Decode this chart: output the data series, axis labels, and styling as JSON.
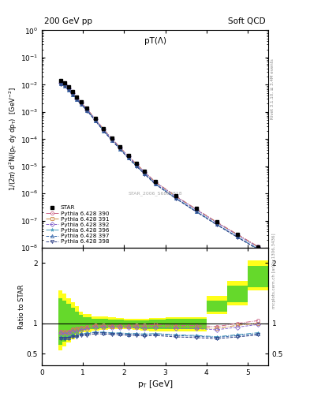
{
  "title_top_left": "200 GeV pp",
  "title_top_right": "Soft QCD",
  "plot_title": "pT(Λ)",
  "ylabel_main": "1/(2π) d²N/(p₁ dy dp₁)  [GeV⁻²]",
  "ylabel_ratio": "Ratio to STAR",
  "xlabel": "p₁ [GeV]",
  "right_label_top": "Rivet 3.1.10, ≥ 3.4M events",
  "right_label_bottom": "mcplots.cern.ch [arXiv:1306.3436]",
  "watermark": "STAR_2006_S6860818",
  "star_label": "STAR",
  "star_pt": [
    0.45,
    0.55,
    0.65,
    0.75,
    0.85,
    0.95,
    1.1,
    1.3,
    1.5,
    1.7,
    1.9,
    2.1,
    2.3,
    2.5,
    2.75,
    3.25,
    3.75,
    4.25,
    4.75,
    5.25
  ],
  "star_val": [
    0.014,
    0.012,
    0.0085,
    0.0055,
    0.0036,
    0.0024,
    0.00135,
    0.00057,
    0.00024,
    0.00011,
    5.2e-05,
    2.5e-05,
    1.25e-05,
    6.5e-06,
    2.8e-06,
    8.5e-07,
    2.8e-07,
    9.5e-08,
    3.2e-08,
    1.1e-08
  ],
  "star_yerr": [
    0.0008,
    0.0007,
    0.0005,
    0.0003,
    0.0002,
    0.00013,
    7e-05,
    3e-05,
    1.3e-05,
    6e-06,
    3e-06,
    1.4e-06,
    7e-07,
    3.5e-07,
    1.5e-07,
    4.5e-08,
    1.5e-08,
    5e-09,
    2e-09,
    8e-10
  ],
  "pythia_pt": [
    0.45,
    0.55,
    0.65,
    0.75,
    0.85,
    0.95,
    1.1,
    1.3,
    1.5,
    1.7,
    1.9,
    2.1,
    2.3,
    2.5,
    2.75,
    3.25,
    3.75,
    4.25,
    4.75,
    5.25
  ],
  "series": [
    {
      "label": "Pythia 6.428 390",
      "color": "#cc6688",
      "marker": "o",
      "linestyle": "-.",
      "val": [
        0.0122,
        0.0104,
        0.0074,
        0.005,
        0.0033,
        0.00225,
        0.00127,
        0.000555,
        0.000232,
        0.000106,
        5e-05,
        2.4e-05,
        1.22e-05,
        6.3e-06,
        2.75e-06,
        8.2e-07,
        2.7e-07,
        9e-08,
        3.2e-08,
        1.15e-08
      ]
    },
    {
      "label": "Pythia 6.428 391",
      "color": "#cc8844",
      "marker": "s",
      "linestyle": "-.",
      "val": [
        0.012,
        0.0102,
        0.0073,
        0.0049,
        0.0032,
        0.0022,
        0.00125,
        0.000545,
        0.000228,
        0.000104,
        4.9e-05,
        2.35e-05,
        1.19e-05,
        6.1e-06,
        2.68e-06,
        8e-07,
        2.62e-07,
        8.7e-08,
        3.1e-08,
        1.1e-08
      ]
    },
    {
      "label": "Pythia 6.428 392",
      "color": "#8866cc",
      "marker": "D",
      "linestyle": "--",
      "val": [
        0.0118,
        0.01,
        0.0071,
        0.0048,
        0.0031,
        0.00215,
        0.00122,
        0.000535,
        0.000225,
        0.000103,
        4.85e-05,
        2.32e-05,
        1.17e-05,
        6e-06,
        2.62e-06,
        7.8e-07,
        2.56e-07,
        8.5e-08,
        3e-08,
        1.08e-08
      ]
    },
    {
      "label": "Pythia 6.428 396",
      "color": "#4499bb",
      "marker": "*",
      "linestyle": "-.",
      "val": [
        0.0108,
        0.0092,
        0.0066,
        0.0044,
        0.0029,
        0.002,
        0.00113,
        0.00049,
        0.000205,
        9.3e-05,
        4.38e-05,
        2.08e-05,
        1.04e-05,
        5.35e-06,
        2.33e-06,
        6.9e-07,
        2.24e-07,
        7.4e-08,
        2.6e-08,
        9.3e-09
      ]
    },
    {
      "label": "Pythia 6.428 397",
      "color": "#3366aa",
      "marker": "^",
      "linestyle": "--",
      "val": [
        0.0107,
        0.0091,
        0.0065,
        0.0044,
        0.0029,
        0.00198,
        0.00112,
        0.000485,
        0.000203,
        9.2e-05,
        4.32e-05,
        2.05e-05,
        1.03e-05,
        5.28e-06,
        2.3e-06,
        6.8e-07,
        2.2e-07,
        7.3e-08,
        2.55e-08,
        9.1e-09
      ]
    },
    {
      "label": "Pythia 6.428 398",
      "color": "#334488",
      "marker": "v",
      "linestyle": "--",
      "val": [
        0.0105,
        0.009,
        0.0064,
        0.0043,
        0.0028,
        0.00193,
        0.00109,
        0.000472,
        0.000198,
        9e-05,
        4.22e-05,
        2e-05,
        1e-05,
        5.14e-06,
        2.24e-06,
        6.6e-07,
        2.14e-07,
        7.1e-08,
        2.48e-08,
        8.9e-09
      ]
    }
  ],
  "band_edges": [
    0.4,
    0.5,
    0.6,
    0.7,
    0.8,
    0.9,
    1.0,
    1.2,
    1.4,
    1.6,
    1.8,
    2.0,
    2.2,
    2.4,
    2.6,
    3.0,
    3.5,
    4.0,
    4.5,
    5.0,
    5.5
  ],
  "band_yellow_lo": [
    0.55,
    0.62,
    0.68,
    0.73,
    0.77,
    0.82,
    0.86,
    0.88,
    0.89,
    0.9,
    0.9,
    0.9,
    0.89,
    0.88,
    0.87,
    0.87,
    0.87,
    1.15,
    1.3,
    1.55,
    1.85
  ],
  "band_yellow_hi": [
    1.55,
    1.5,
    1.42,
    1.35,
    1.28,
    1.2,
    1.15,
    1.12,
    1.11,
    1.1,
    1.09,
    1.08,
    1.08,
    1.08,
    1.09,
    1.1,
    1.1,
    1.45,
    1.7,
    2.05,
    2.3
  ],
  "band_green_lo": [
    0.65,
    0.7,
    0.75,
    0.79,
    0.83,
    0.87,
    0.9,
    0.91,
    0.92,
    0.93,
    0.93,
    0.93,
    0.92,
    0.91,
    0.91,
    0.91,
    0.91,
    1.2,
    1.35,
    1.6,
    1.9
  ],
  "band_green_hi": [
    1.42,
    1.38,
    1.32,
    1.26,
    1.2,
    1.14,
    1.1,
    1.08,
    1.07,
    1.06,
    1.06,
    1.05,
    1.05,
    1.05,
    1.06,
    1.07,
    1.07,
    1.38,
    1.62,
    1.95,
    2.2
  ]
}
